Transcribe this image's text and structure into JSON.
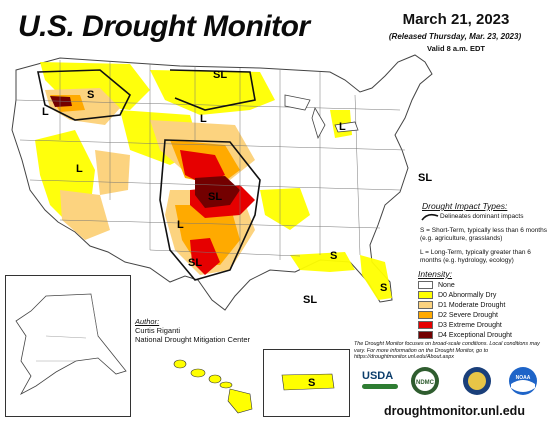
{
  "header": {
    "title": "U.S. Drought Monitor",
    "date": "March 21, 2023",
    "released": "(Released Thursday, Mar. 23, 2023)",
    "valid": "Valid 8 a.m. EDT"
  },
  "map_labels": {
    "s1": "S",
    "l1": "L",
    "sl1": "SL",
    "l2": "L",
    "l3": "L",
    "sl2": "SL",
    "l4": "L",
    "l5": "L",
    "sl3": "SL",
    "sl4": "SL",
    "s2": "S",
    "s3": "S",
    "sl5": "SL",
    "s_pr": "S"
  },
  "impact_legend": {
    "title": "Drought Impact Types:",
    "line_desc": "Delineates dominant impacts",
    "s_desc": "S = Short-Term, typically less than 6 months (e.g. agriculture, grasslands)",
    "l_desc": "L = Long-Term, typically greater than 6 months (e.g. hydrology, ecology)"
  },
  "intensity_legend": {
    "title": "Intensity:",
    "items": [
      {
        "label": "None",
        "color": "#ffffff"
      },
      {
        "label": "D0 Abnormally Dry",
        "color": "#ffff00"
      },
      {
        "label": "D1 Moderate Drought",
        "color": "#fcd37f"
      },
      {
        "label": "D2 Severe Drought",
        "color": "#ffaa00"
      },
      {
        "label": "D3 Extreme Drought",
        "color": "#e60000"
      },
      {
        "label": "D4 Exceptional Drought",
        "color": "#730000"
      }
    ]
  },
  "author": {
    "label": "Author:",
    "name": "Curtis Riganti",
    "org": "National Drought Mitigation Center"
  },
  "disclaimer": "The Drought Monitor focuses on broad-scale conditions. Local conditions may vary. For more information on the Drought Monitor, go to https://droughtmonitor.unl.edu/About.aspx",
  "logos": {
    "usda": "USDA",
    "ndmc": "NDMC",
    "commerce": "",
    "noaa": "NOAA"
  },
  "url": "droughtmonitor.unl.edu"
}
